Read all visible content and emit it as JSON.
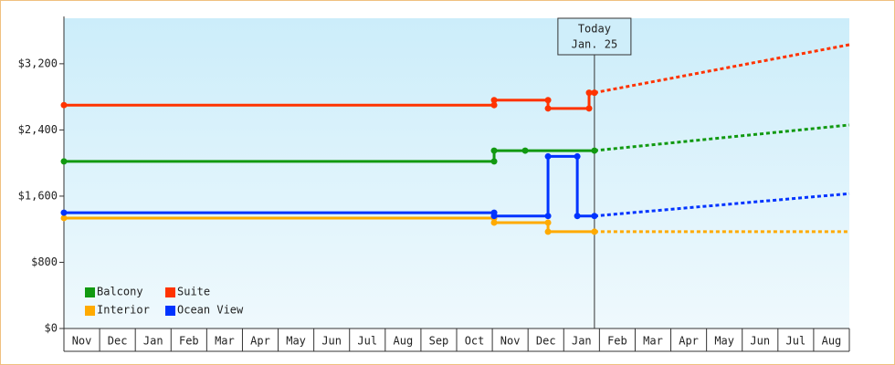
{
  "chart_data": {
    "type": "line",
    "categories": [
      "Nov",
      "Dec",
      "Jan",
      "Feb",
      "Mar",
      "Apr",
      "May",
      "Jun",
      "Jul",
      "Aug",
      "Sep",
      "Oct",
      "Nov",
      "Dec",
      "Jan",
      "Feb",
      "Mar",
      "Apr",
      "May",
      "Jun",
      "Jul",
      "Aug"
    ],
    "xlim": [
      0,
      22
    ],
    "ylim": [
      0,
      3750
    ],
    "yticks": [
      {
        "value": 0,
        "label": "$0"
      },
      {
        "value": 800,
        "label": "$800"
      },
      {
        "value": 1600,
        "label": "$1,600"
      },
      {
        "value": 2400,
        "label": "$2,400"
      },
      {
        "value": 3200,
        "label": "$3,200"
      }
    ],
    "annotation": {
      "text": [
        "Today",
        "Jan. 25"
      ],
      "x": 14.86
    },
    "legend": "lower left",
    "series": [
      {
        "name": "Balcony",
        "color": "#119911",
        "x": [
          0,
          12.05,
          12.05,
          12.92,
          14.86
        ],
        "values": [
          2020,
          2020,
          2150,
          2150,
          2150
        ],
        "forecast_x": [
          14.86,
          22
        ],
        "forecast_values": [
          2150,
          2460
        ]
      },
      {
        "name": "Suite",
        "color": "#ff3300",
        "x": [
          0,
          12.05,
          12.05,
          13.56,
          13.56,
          14.71,
          14.71,
          14.86
        ],
        "values": [
          2700,
          2700,
          2760,
          2760,
          2660,
          2660,
          2850,
          2850
        ],
        "forecast_x": [
          14.86,
          22
        ],
        "forecast_values": [
          2850,
          3430
        ]
      },
      {
        "name": "Interior",
        "color": "#ffaa00",
        "x": [
          0,
          12.05,
          12.05,
          13.56,
          13.56,
          14.86
        ],
        "values": [
          1335,
          1335,
          1280,
          1280,
          1170,
          1170
        ],
        "forecast_x": [
          14.86,
          22
        ],
        "forecast_values": [
          1170,
          1170
        ]
      },
      {
        "name": "Ocean View",
        "color": "#0033ff",
        "x": [
          0,
          12.05,
          12.05,
          13.56,
          13.56,
          14.38,
          14.38,
          14.86
        ],
        "values": [
          1400,
          1400,
          1360,
          1360,
          2080,
          2080,
          1360,
          1360
        ],
        "forecast_x": [
          14.86,
          22
        ],
        "forecast_values": [
          1360,
          1630
        ]
      }
    ]
  }
}
